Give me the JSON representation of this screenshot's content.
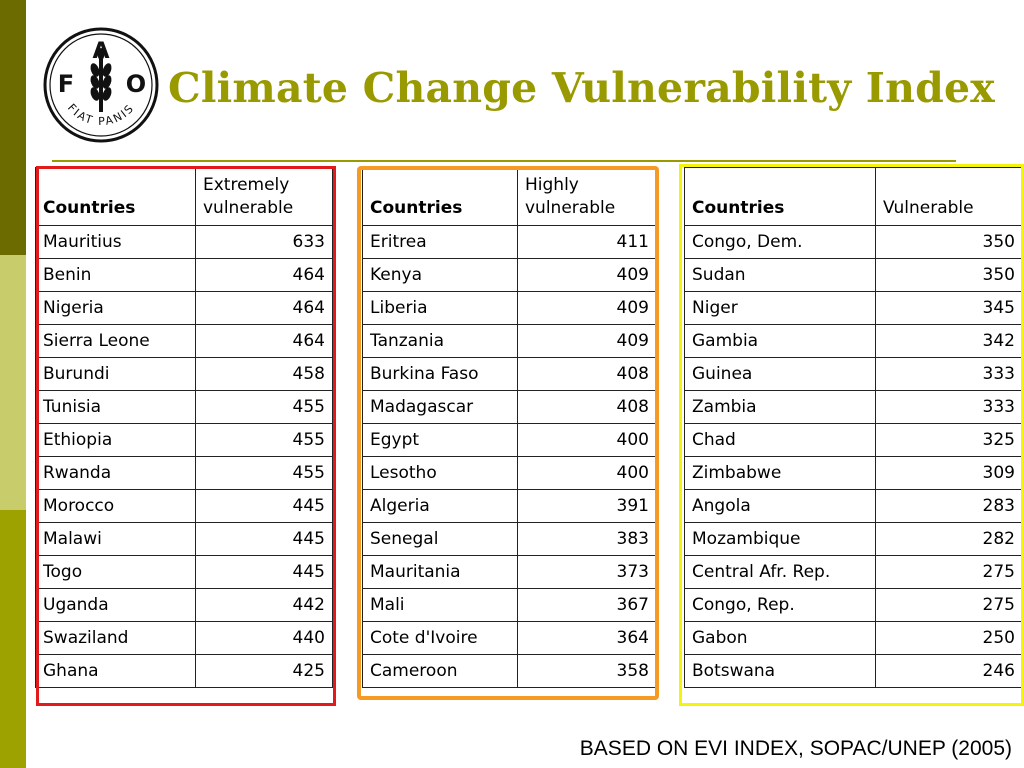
{
  "title": "Climate Change Vulnerability Index",
  "logo": {
    "letters": [
      "F",
      "A",
      "O"
    ],
    "motto": "FIAT PANIS"
  },
  "colors": {
    "title": "#999900",
    "frame_extreme": "#e11b1b",
    "frame_high": "#f49a25",
    "frame_vulnerable": "#f4f40a"
  },
  "tables": [
    {
      "header": {
        "country": "Countries",
        "value": "Extremely vulnerable"
      },
      "rows": [
        {
          "country": "Mauritius",
          "value": "633"
        },
        {
          "country": "Benin",
          "value": "464"
        },
        {
          "country": "Nigeria",
          "value": "464"
        },
        {
          "country": "Sierra Leone",
          "value": "464"
        },
        {
          "country": "Burundi",
          "value": "458"
        },
        {
          "country": "Tunisia",
          "value": "455"
        },
        {
          "country": "Ethiopia",
          "value": "455"
        },
        {
          "country": "Rwanda",
          "value": "455"
        },
        {
          "country": "Morocco",
          "value": "445"
        },
        {
          "country": "Malawi",
          "value": "445"
        },
        {
          "country": "Togo",
          "value": "445"
        },
        {
          "country": "Uganda",
          "value": "442"
        },
        {
          "country": "Swaziland",
          "value": "440"
        },
        {
          "country": "Ghana",
          "value": "425"
        }
      ]
    },
    {
      "header": {
        "country": "Countries",
        "value": "Highly vulnerable"
      },
      "rows": [
        {
          "country": "Eritrea",
          "value": "411"
        },
        {
          "country": "Kenya",
          "value": "409"
        },
        {
          "country": "Liberia",
          "value": "409"
        },
        {
          "country": "Tanzania",
          "value": "409"
        },
        {
          "country": "Burkina Faso",
          "value": "408"
        },
        {
          "country": "Madagascar",
          "value": "408"
        },
        {
          "country": "Egypt",
          "value": "400"
        },
        {
          "country": "Lesotho",
          "value": "400"
        },
        {
          "country": "Algeria",
          "value": "391"
        },
        {
          "country": "Senegal",
          "value": "383"
        },
        {
          "country": "Mauritania",
          "value": "373"
        },
        {
          "country": "Mali",
          "value": "367"
        },
        {
          "country": "Cote d'Ivoire",
          "value": "364"
        },
        {
          "country": "Cameroon",
          "value": "358"
        }
      ]
    },
    {
      "header": {
        "country": "Countries",
        "value": "Vulnerable"
      },
      "rows": [
        {
          "country": "Congo, Dem.",
          "value": "350"
        },
        {
          "country": "Sudan",
          "value": "350"
        },
        {
          "country": "Niger",
          "value": "345"
        },
        {
          "country": "Gambia",
          "value": "342"
        },
        {
          "country": "Guinea",
          "value": "333"
        },
        {
          "country": "Zambia",
          "value": "333"
        },
        {
          "country": "Chad",
          "value": "325"
        },
        {
          "country": "Zimbabwe",
          "value": "309"
        },
        {
          "country": "Angola",
          "value": "283"
        },
        {
          "country": "Mozambique",
          "value": "282"
        },
        {
          "country": "Central Afr. Rep.",
          "value": "275"
        },
        {
          "country": "Congo, Rep.",
          "value": "275"
        },
        {
          "country": "Gabon",
          "value": "250"
        },
        {
          "country": "Botswana",
          "value": "246"
        }
      ]
    }
  ],
  "source": "BASED ON EVI INDEX, SOPAC/UNEP (2005)"
}
